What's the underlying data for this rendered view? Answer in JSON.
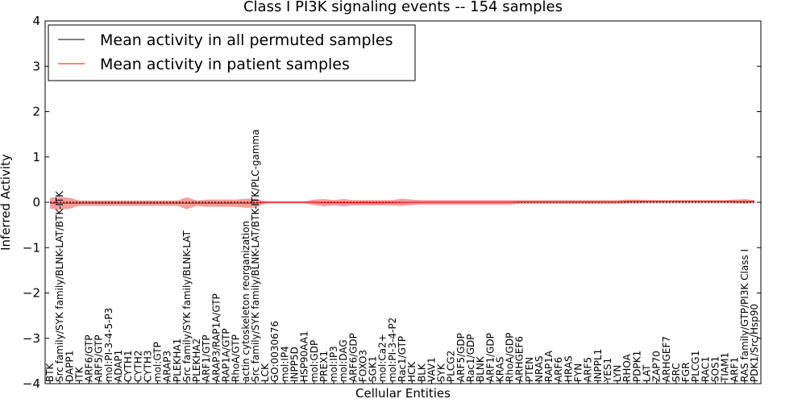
{
  "chart_data": {
    "type": "line",
    "title": "Class I PI3K signaling events -- 154 samples",
    "xlabel": "Cellular Entities",
    "ylabel": "Inferred Activity",
    "ylim": [
      -4,
      4
    ],
    "yticks": [
      "−4",
      "−3",
      "−2",
      "−1",
      "0",
      "1",
      "2",
      "3",
      "4"
    ],
    "grid": false,
    "legend": {
      "placement": "top-left",
      "entries": [
        {
          "label": "Mean activity in all permuted samples",
          "color": "#000000"
        },
        {
          "label": "Mean activity in patient samples",
          "color": "#ff0000"
        }
      ]
    },
    "categories": [
      "BTK",
      "Src family/SYK family/BLNK-LAT/BTK-ITK",
      "DAPP1",
      "ITK",
      "ARF6/GTP",
      "ARF5/GTP",
      "mol:PI-3-4-5-P3",
      "ADAP1",
      "CYTH1",
      "CYTH2",
      "CYTH3",
      "mol:GTP",
      "ARAP3",
      "PLEKHA1",
      "Src family/SYK family/BLNK-LAT",
      "PLEKHA2",
      "ARF1/GTP",
      "ARAP3/RAP1A/GTP",
      "RAP1A/GTP",
      "RhoA/GTP",
      "actin cytoskeleton reorganization",
      "Src family/SYK family/BLNK-LAT/BTK-ITK/PLC-gamma",
      "LCK",
      "GO:0030676",
      "mol:IP4",
      "INPP5D",
      "HSP90AA1",
      "mol:GDP",
      "PREX1",
      "mol:IP3",
      "mol:DAG",
      "ARF6/GDP",
      "FOXO3",
      "SGK1",
      "mol:Ca2+",
      "mol:PI-3-4-P2",
      "Rac1/GTP",
      "HCK",
      "BLK",
      "VAV1",
      "SYK",
      "PLCG2",
      "ARF5/GDP",
      "Rac1/GDP",
      "BLNK",
      "ARF1/GDP",
      "KRAS",
      "RhoA/GDP",
      "ARHGEF6",
      "PTEN",
      "NRAS",
      "RAP1A",
      "ARF6",
      "HRAS",
      "FYN",
      "ARF5",
      "INPPL1",
      "YES1",
      "LYN",
      "RHOA",
      "PDPK1",
      "LAT",
      "ZAP70",
      "ARHGEF7",
      "SRC",
      "FGR",
      "PLCG1",
      "RAC1",
      "SOS1",
      "TIAM1",
      "ARF1",
      "RAS family/GTP/PI3K Class I",
      "PDK1/Src/Hsp90"
    ],
    "series": [
      {
        "name": "Mean activity in all permuted samples",
        "color": "#000000",
        "values": [
          0,
          0,
          0,
          0,
          0,
          0,
          0,
          0,
          0,
          0,
          0,
          0,
          0,
          0,
          0,
          0,
          0,
          0,
          0,
          0,
          0,
          0,
          0,
          0,
          0,
          0,
          0,
          0,
          0,
          0,
          0,
          0,
          0,
          0,
          0,
          0,
          0,
          0,
          0,
          0,
          0,
          0,
          0,
          0,
          0,
          0,
          0,
          0,
          0,
          0,
          0,
          0,
          0,
          0,
          0,
          0,
          0,
          0,
          0,
          0,
          0,
          0,
          0,
          0,
          0,
          0,
          0,
          0,
          0,
          0,
          0,
          0,
          0
        ],
        "band_halfwidth": [
          0.03,
          0.03,
          0.03,
          0.03,
          0.03,
          0.03,
          0.03,
          0.03,
          0.03,
          0.03,
          0.03,
          0.03,
          0.03,
          0.03,
          0.03,
          0.03,
          0.03,
          0.03,
          0.03,
          0.03,
          0.03,
          0.03,
          0.03,
          0.03,
          0.03,
          0.03,
          0.03,
          0.03,
          0.03,
          0.03,
          0.03,
          0.03,
          0.03,
          0.03,
          0.03,
          0.03,
          0.03,
          0.03,
          0.03,
          0.03,
          0.03,
          0.03,
          0.03,
          0.03,
          0.03,
          0.03,
          0.03,
          0.03,
          0.03,
          0.03,
          0.03,
          0.03,
          0.03,
          0.03,
          0.03,
          0.03,
          0.03,
          0.03,
          0.03,
          0.03,
          0.03,
          0.03,
          0.03,
          0.03,
          0.03,
          0.03,
          0.03,
          0.03,
          0.03,
          0.03,
          0.03,
          0.03,
          0.03
        ]
      },
      {
        "name": "Mean activity in patient samples",
        "color": "#ff0000",
        "values": [
          -0.02,
          -0.02,
          -0.02,
          -0.02,
          -0.02,
          -0.02,
          -0.02,
          -0.02,
          -0.02,
          -0.02,
          -0.02,
          -0.02,
          -0.02,
          -0.02,
          -0.02,
          -0.02,
          -0.02,
          -0.02,
          -0.02,
          -0.02,
          -0.02,
          -0.02,
          0,
          0,
          0,
          0,
          0,
          0,
          -0.01,
          -0.01,
          -0.01,
          -0.01,
          -0.01,
          -0.01,
          -0.01,
          -0.01,
          0,
          0,
          0,
          0,
          0,
          0,
          0,
          0,
          0,
          0,
          0,
          0,
          0.01,
          0.01,
          0.01,
          0.01,
          0.01,
          0.01,
          0.01,
          0.01,
          0.01,
          0.01,
          0.01,
          0.02,
          0.02,
          0.02,
          0.02,
          0.02,
          0.02,
          0.02,
          0.02,
          0.02,
          0.02,
          0.02,
          0.02,
          0.02,
          0.02
        ],
        "band_halfwidth": [
          0.12,
          0.14,
          0.12,
          0.06,
          0.06,
          0.06,
          0.06,
          0.06,
          0.06,
          0.06,
          0.06,
          0.06,
          0.06,
          0.06,
          0.13,
          0.06,
          0.08,
          0.08,
          0.08,
          0.08,
          0.1,
          0.1,
          0.02,
          0.02,
          0.02,
          0.02,
          0.02,
          0.06,
          0.08,
          0.06,
          0.08,
          0.06,
          0.06,
          0.06,
          0.06,
          0.06,
          0.08,
          0.06,
          0.05,
          0.05,
          0.05,
          0.05,
          0.05,
          0.05,
          0.05,
          0.05,
          0.05,
          0.05,
          0.04,
          0.04,
          0.04,
          0.04,
          0.04,
          0.04,
          0.04,
          0.04,
          0.04,
          0.04,
          0.04,
          0.04,
          0.04,
          0.03,
          0.03,
          0.03,
          0.03,
          0.03,
          0.03,
          0.03,
          0.03,
          0.03,
          0.04,
          0.05,
          0.03
        ]
      }
    ]
  }
}
